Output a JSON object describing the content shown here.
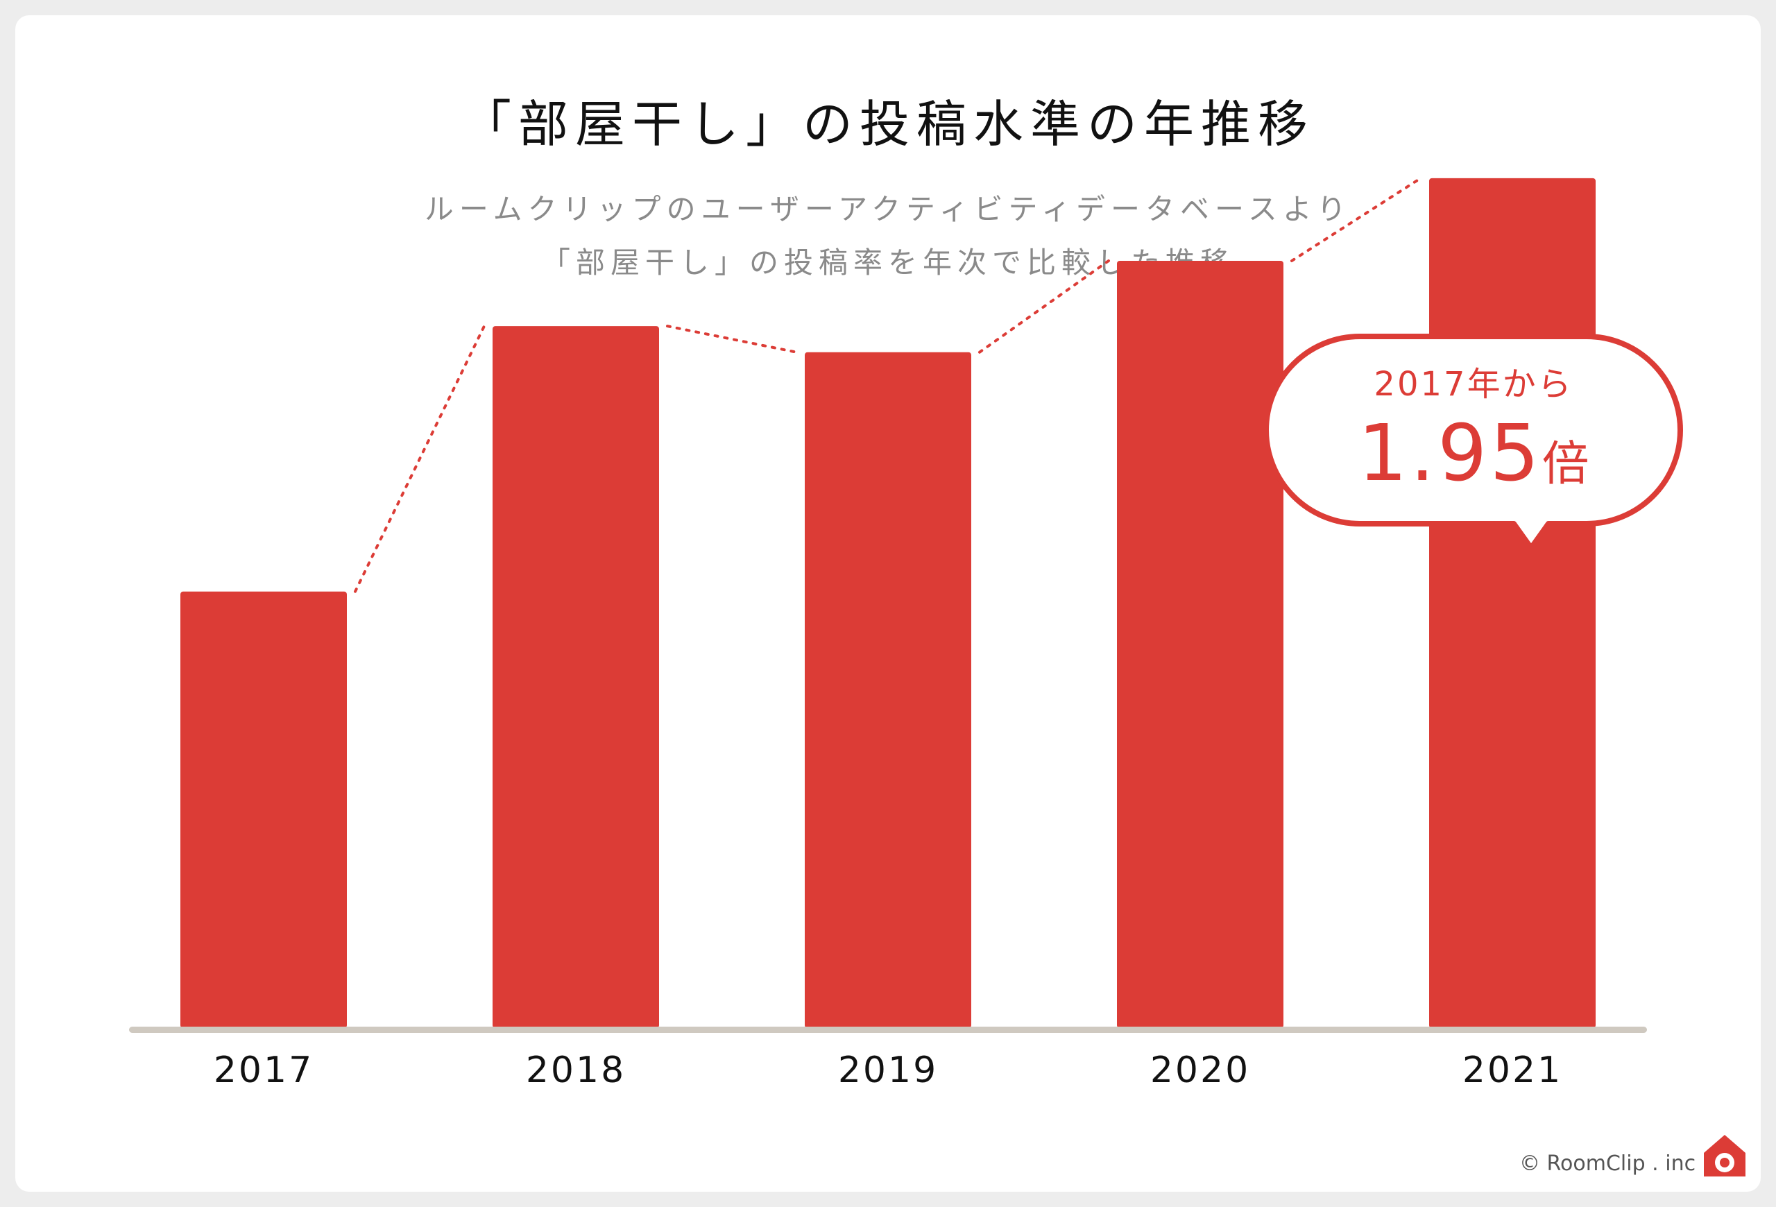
{
  "colors": {
    "bar": "#dc3c36",
    "axis": "#cfc9c0",
    "title": "#111111",
    "subtitle": "#8a8a8a",
    "callout": "#dc3c36"
  },
  "chart_data": {
    "type": "bar",
    "title": "「部屋干し」の投稿水準の年推移",
    "subtitle_lines": [
      "ルームクリップのユーザーアクティビティデータベースより",
      "「部屋干し」の投稿率を年次で比較した推移"
    ],
    "categories": [
      "2017",
      "2018",
      "2019",
      "2020",
      "2021"
    ],
    "values": [
      1.0,
      1.61,
      1.55,
      1.76,
      1.95
    ],
    "ylim": [
      0,
      2.2
    ],
    "grid": false,
    "trend_line": "dotted",
    "callout": {
      "line1": "2017年から",
      "value": "1.95",
      "unit": "倍"
    }
  },
  "footer": {
    "copyright": "© RoomClip . inc",
    "logo_icon": "roomclip-house-camera-icon"
  }
}
